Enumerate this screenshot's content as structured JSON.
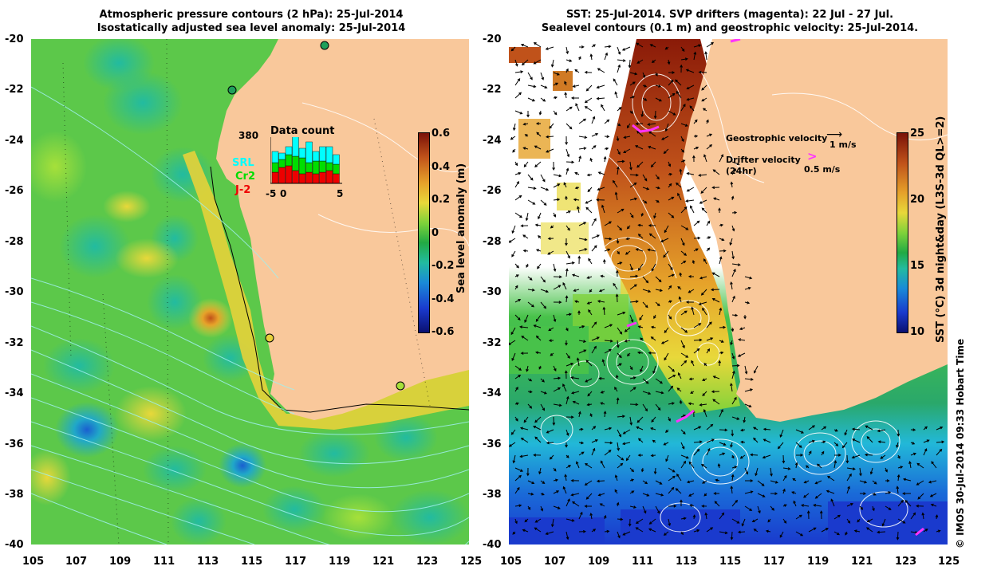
{
  "left": {
    "title_line1": "Atmospheric pressure contours (2 hPa): 25-Jul-2014",
    "title_line2": "Isostatically adjusted sea level anomaly: 25-Jul-2014",
    "colorbar_label": "Sea level anomaly (m)",
    "colorbar_ticks": [
      "0.6",
      "0.4",
      "0.2",
      "0",
      "-0.2",
      "-0.4",
      "-0.6"
    ],
    "inset": {
      "count_label": "380",
      "title": "Data count",
      "legend": [
        "SRL",
        "Cr2",
        "J-2"
      ],
      "xticks": [
        "-5",
        "0",
        "5"
      ],
      "colors": {
        "srl": "#00ffff",
        "cr2": "#00dd00",
        "j2": "#ee0000"
      }
    }
  },
  "right": {
    "title_line1": "SST: 25-Jul-2014. SVP drifters (magenta): 22 Jul - 27 Jul.",
    "title_line2": "Sealevel contours (0.1 m) and geostrophic velocity: 25-Jul-2014.",
    "colorbar_label": "SST (°C) 3d night&day (L3S-3d QL>=2)",
    "colorbar_ticks": [
      "25",
      "20",
      "15",
      "10"
    ],
    "legend_geo_label": "Geostrophic velocity",
    "legend_geo_scale": "1 m/s",
    "legend_drifter_label1": "Drifter velocity",
    "legend_drifter_label2": "(24hr)",
    "legend_drifter_scale": "0.5 m/s"
  },
  "axes": {
    "lat_ticks": [
      "-20",
      "-22",
      "-24",
      "-26",
      "-28",
      "-30",
      "-32",
      "-34",
      "-36",
      "-38",
      "-40"
    ],
    "lon_ticks": [
      "105",
      "107",
      "109",
      "111",
      "113",
      "115",
      "117",
      "119",
      "121",
      "123",
      "125"
    ]
  },
  "credit": "© IMOS 30-Jul-2014 09:33 Hobart Time",
  "colors": {
    "land": "#f9c89b",
    "drifter": "#ff33ff",
    "contour": "#ffffff"
  }
}
